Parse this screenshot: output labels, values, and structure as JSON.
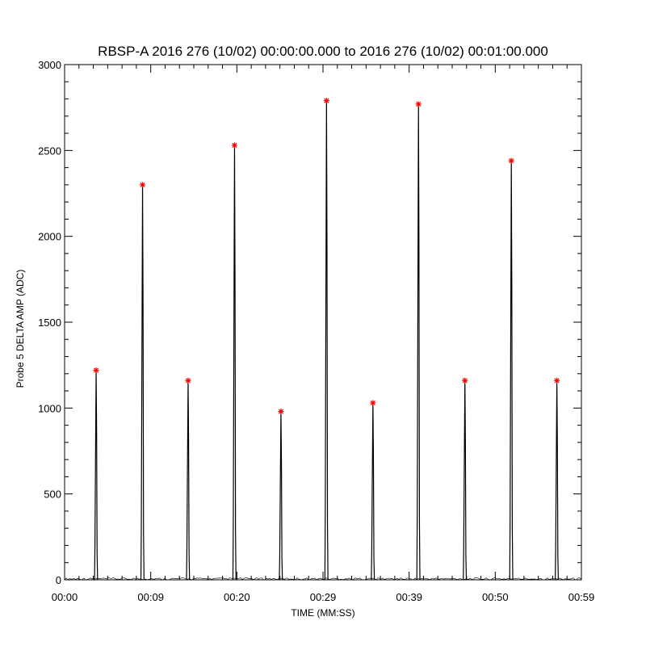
{
  "chart_data": {
    "type": "line",
    "title": "RBSP-A 2016 276 (10/02) 00:00:00.000 to 2016 276 (10/02) 00:01:00.000",
    "xlabel": "TIME (MM:SS)",
    "ylabel": "Probe 5 DELTA AMP (ADC)",
    "x_unit": "seconds",
    "xlim": [
      0,
      59
    ],
    "ylim": [
      0,
      3000
    ],
    "x_tick_labels": [
      "00:00",
      "00:09",
      "00:20",
      "00:29",
      "00:39",
      "00:50",
      "00:59"
    ],
    "y_tick_labels": [
      "0",
      "500",
      "1000",
      "1500",
      "2000",
      "2500",
      "3000"
    ],
    "y_tick_values": [
      0,
      500,
      1000,
      1500,
      2000,
      2500,
      3000
    ],
    "line_color": "#000000",
    "peak_marker_color": "#ff0000",
    "peak_marker": "asterisk",
    "series": [
      {
        "peaks": [
          {
            "x": 3.6,
            "y": 1220
          },
          {
            "x": 8.9,
            "y": 2300
          },
          {
            "x": 14.1,
            "y": 1160
          },
          {
            "x": 19.4,
            "y": 2530
          },
          {
            "x": 24.7,
            "y": 980
          },
          {
            "x": 29.9,
            "y": 2790
          },
          {
            "x": 35.2,
            "y": 1030
          },
          {
            "x": 40.4,
            "y": 2770
          },
          {
            "x": 45.7,
            "y": 1160
          },
          {
            "x": 51.0,
            "y": 2440
          },
          {
            "x": 56.2,
            "y": 1160
          }
        ]
      }
    ]
  }
}
